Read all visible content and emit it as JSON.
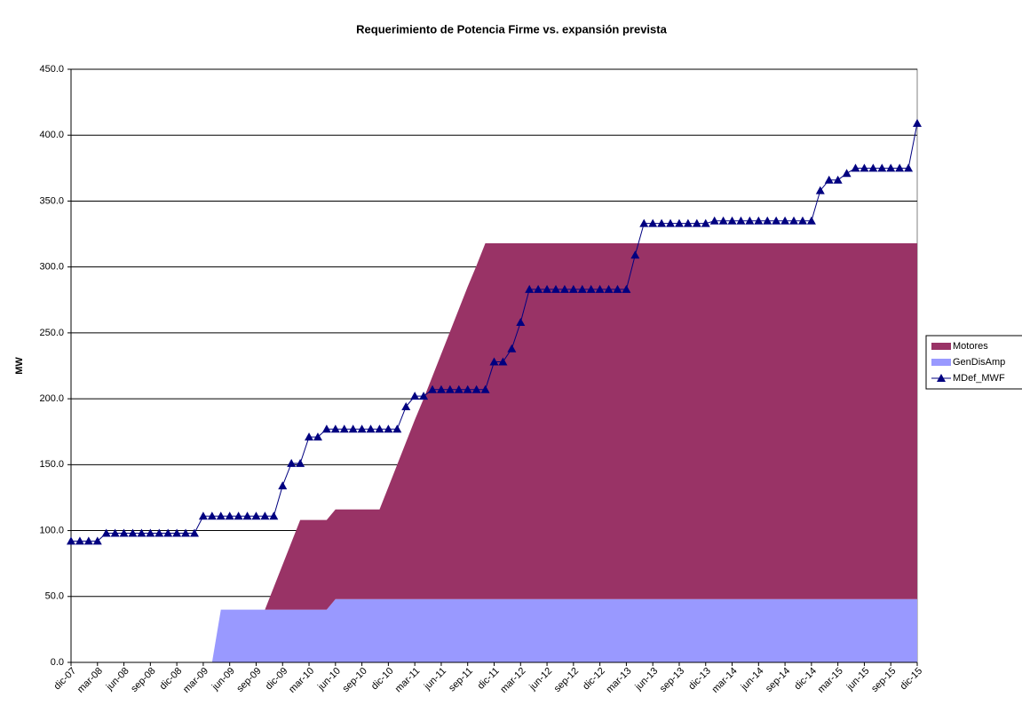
{
  "chart_data": {
    "type": "area",
    "title": "Requerimiento de Potencia Firme vs. expansión prevista",
    "y_label": "MW",
    "categories": [
      "dic-07",
      null,
      null,
      "mar-08",
      null,
      null,
      "jun-08",
      null,
      null,
      "sep-08",
      null,
      null,
      "dic-08",
      null,
      null,
      "mar-09",
      null,
      null,
      "jun-09",
      null,
      null,
      "sep-09",
      null,
      null,
      "dic-09",
      null,
      null,
      "mar-10",
      null,
      null,
      "jun-10",
      null,
      null,
      "sep-10",
      null,
      null,
      "dic-10",
      null,
      null,
      "mar-11",
      null,
      null,
      "jun-11",
      null,
      null,
      "sep-11",
      null,
      null,
      "dic-11",
      null,
      null,
      "mar-12",
      null,
      null,
      "jun-12",
      null,
      null,
      "sep-12",
      null,
      null,
      "dic-12",
      null,
      null,
      "mar-13",
      null,
      null,
      "jun-13",
      null,
      null,
      "sep-13",
      null,
      null,
      "dic-13",
      null,
      null,
      "mar-14",
      null,
      null,
      "jun-14",
      null,
      null,
      "sep-14",
      null,
      null,
      "dic-14",
      null,
      null,
      "mar-15",
      null,
      null,
      "jun-15",
      null,
      null,
      "sep-15",
      null,
      null,
      "dic-15"
    ],
    "series": [
      {
        "name": "GenDisAmp",
        "type": "area",
        "color": "#9999ff",
        "values": [
          0,
          0,
          0,
          0,
          0,
          0,
          0,
          0,
          0,
          0,
          0,
          0,
          0,
          0,
          0,
          0,
          0,
          40,
          40,
          40,
          40,
          40,
          40,
          40,
          40,
          40,
          40,
          40,
          40,
          40,
          48,
          48,
          48,
          48,
          48,
          48,
          48,
          48,
          48,
          48,
          48,
          48,
          48,
          48,
          48,
          48,
          48,
          48,
          48,
          48,
          48,
          48,
          48,
          48,
          48,
          48,
          48,
          48,
          48,
          48,
          48,
          48,
          48,
          48,
          48,
          48,
          48,
          48,
          48,
          48,
          48,
          48,
          48,
          48,
          48,
          48,
          48,
          48,
          48,
          48,
          48,
          48,
          48,
          48,
          48,
          48,
          48,
          48,
          48,
          48,
          48,
          48,
          48,
          48,
          48,
          48,
          48
        ]
      },
      {
        "name": "Motores",
        "type": "area",
        "color": "#993366",
        "values": [
          0,
          0,
          0,
          0,
          0,
          0,
          0,
          0,
          0,
          0,
          0,
          0,
          0,
          0,
          0,
          0,
          0,
          0,
          0,
          0,
          0,
          0,
          0,
          17,
          34,
          51,
          68,
          68,
          68,
          68,
          68,
          68,
          68,
          68,
          68,
          68,
          85,
          102,
          119,
          136,
          152,
          169,
          186,
          203,
          220,
          237,
          253,
          270,
          270,
          270,
          270,
          270,
          270,
          270,
          270,
          270,
          270,
          270,
          270,
          270,
          270,
          270,
          270,
          270,
          270,
          270,
          270,
          270,
          270,
          270,
          270,
          270,
          270,
          270,
          270,
          270,
          270,
          270,
          270,
          270,
          270,
          270,
          270,
          270,
          270,
          270,
          270,
          270,
          270,
          270,
          270,
          270,
          270,
          270,
          270,
          270,
          270
        ]
      },
      {
        "name": "MDef_MWF",
        "type": "line",
        "color": "#000080",
        "values": [
          92,
          92,
          92,
          92,
          98,
          98,
          98,
          98,
          98,
          98,
          98,
          98,
          98,
          98,
          98,
          111,
          111,
          111,
          111,
          111,
          111,
          111,
          111,
          111,
          134,
          151,
          151,
          171,
          171,
          177,
          177,
          177,
          177,
          177,
          177,
          177,
          177,
          177,
          194,
          202,
          202,
          207,
          207,
          207,
          207,
          207,
          207,
          207,
          228,
          228,
          238,
          258,
          283,
          283,
          283,
          283,
          283,
          283,
          283,
          283,
          283,
          283,
          283,
          283,
          309,
          333,
          333,
          333,
          333,
          333,
          333,
          333,
          333,
          335,
          335,
          335,
          335,
          335,
          335,
          335,
          335,
          335,
          335,
          335,
          335,
          358,
          366,
          366,
          371,
          375,
          375,
          375,
          375,
          375,
          375,
          375,
          409
        ]
      }
    ],
    "stacked": true,
    "ylim": [
      0,
      450
    ],
    "yticks": [
      {
        "value": 0,
        "label": "0.0"
      },
      {
        "value": 50,
        "label": "50.0"
      },
      {
        "value": 100,
        "label": "100.0"
      },
      {
        "value": 150,
        "label": "150.0"
      },
      {
        "value": 200,
        "label": "200.0"
      },
      {
        "value": 250,
        "label": "250.0"
      },
      {
        "value": 300,
        "label": "300.0"
      },
      {
        "value": 350,
        "label": "350.0"
      },
      {
        "value": 400,
        "label": "400.0"
      },
      {
        "value": 450,
        "label": "450.0"
      }
    ],
    "grid": true,
    "legend": "right"
  }
}
